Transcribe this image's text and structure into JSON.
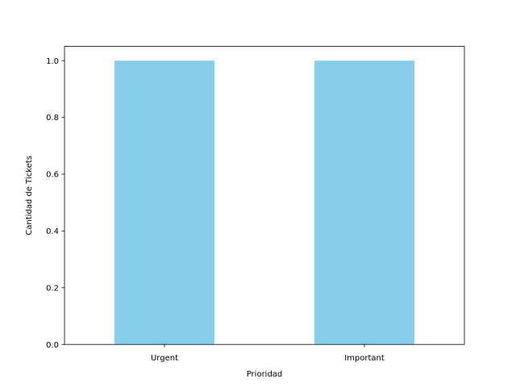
{
  "chart_data": {
    "type": "bar",
    "title": "",
    "xlabel": "Prioridad",
    "ylabel": "Cantidad de Tickets",
    "categories": [
      "Urgent",
      "Important"
    ],
    "values": [
      1,
      1
    ],
    "ylim": [
      0,
      1.05
    ],
    "yticks": [
      "0.0",
      "0.2",
      "0.4",
      "0.6",
      "0.8",
      "1.0"
    ],
    "bar_color": "#87ceeb",
    "grid": false,
    "legend": "none"
  }
}
